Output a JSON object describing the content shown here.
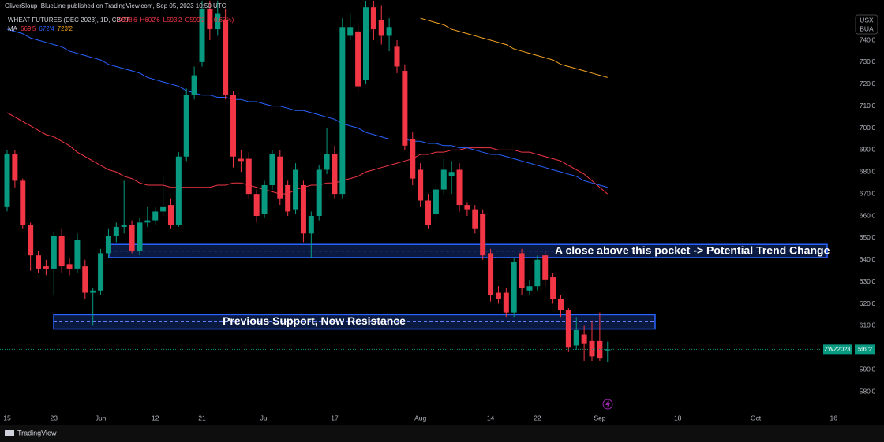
{
  "header": {
    "published": "OliverSloup_BlueLine published on TradingView.com, Sep 05, 2023 10:50 UTC",
    "brand": "TradingView"
  },
  "chart_data": {
    "type": "candlestick",
    "title": "WHEAT FUTURES (DEC 2023), 1D, CBOT",
    "ohlc_text": [
      "O598'6",
      "H602'6",
      "L593'2",
      "C599'2",
      "(+0.63%)"
    ],
    "currency": [
      "USX",
      "BUA"
    ],
    "up_color": "#089981",
    "down_color": "#f23645",
    "categories": [
      "15",
      null,
      null,
      null,
      null,
      null,
      "23",
      null,
      null,
      null,
      null,
      null,
      "Jun",
      null,
      null,
      null,
      null,
      null,
      null,
      "12",
      null,
      null,
      null,
      null,
      null,
      "21",
      null,
      null,
      null,
      null,
      null,
      null,
      null,
      "Jul",
      null,
      null,
      null,
      null,
      null,
      null,
      null,
      null,
      "17",
      null,
      null,
      null,
      null,
      null,
      null,
      null,
      null,
      null,
      null,
      "Aug",
      null,
      null,
      null,
      null,
      null,
      null,
      null,
      null,
      "14",
      null,
      null,
      null,
      null,
      null,
      "22",
      null,
      null,
      null,
      null,
      null,
      null,
      null,
      "Sep",
      null,
      null,
      null,
      null,
      null,
      null,
      null,
      null,
      null,
      "18",
      null,
      null,
      null,
      null,
      null,
      null,
      null,
      null,
      null,
      "Oct",
      null,
      null,
      null,
      null,
      null,
      null,
      null,
      null,
      null,
      "16"
    ],
    "open": [
      664,
      688,
      676,
      656,
      642,
      637,
      636,
      651,
      638,
      636,
      637,
      625,
      626,
      643,
      651,
      655,
      656,
      644,
      657,
      658,
      662,
      665,
      656,
      687,
      715,
      730,
      754,
      745,
      749,
      715,
      686,
      686,
      670,
      661,
      674,
      687,
      674,
      663,
      674,
      652,
      660,
      681,
      688,
      670,
      742,
      744,
      722,
      755,
      749,
      742,
      737,
      726,
      695,
      681,
      667,
      661,
      672,
      678,
      681,
      665,
      663,
      661,
      643,
      625,
      625,
      616,
      643,
      626,
      628,
      642,
      632,
      622,
      617,
      601,
      606,
      603,
      603,
      598.75,
      null,
      null,
      null,
      null,
      null,
      null,
      null,
      null,
      null,
      null,
      null,
      null,
      null,
      null,
      null,
      null,
      null,
      null,
      null,
      null,
      null,
      null,
      null,
      null,
      null,
      null,
      null,
      null,
      null
    ],
    "high": [
      690,
      690,
      677,
      657,
      644,
      640,
      653,
      654,
      641,
      652,
      640,
      627,
      645,
      654,
      657,
      676,
      658,
      659,
      664,
      664,
      678,
      668,
      689,
      718,
      728,
      758,
      758,
      758,
      754,
      717,
      690,
      689,
      672,
      676,
      690,
      690,
      676,
      684,
      676,
      662,
      683,
      700,
      692,
      750,
      752,
      748,
      758,
      758,
      756,
      750,
      740,
      729,
      698,
      684,
      670,
      675,
      686,
      685,
      684,
      666,
      665,
      663,
      645,
      628,
      627,
      641,
      645,
      631,
      642,
      644,
      634,
      624,
      618,
      614,
      610,
      612,
      616,
      602.75,
      null,
      null,
      null,
      null,
      null,
      null,
      null,
      null,
      null,
      null,
      null,
      null,
      null,
      null,
      null,
      null,
      null,
      null,
      null,
      null,
      null,
      null,
      null,
      null,
      null,
      null,
      null,
      null,
      null
    ],
    "low": [
      662,
      673,
      654,
      635,
      634,
      633,
      624,
      634,
      633,
      634,
      622,
      610,
      624,
      641,
      648,
      652,
      643,
      642,
      655,
      656,
      660,
      654,
      655,
      685,
      713,
      728,
      740,
      742,
      713,
      682,
      680,
      668,
      657,
      659,
      672,
      665,
      660,
      661,
      648,
      641,
      658,
      679,
      668,
      668,
      740,
      716,
      720,
      740,
      738,
      735,
      725,
      690,
      674,
      664,
      654,
      658,
      670,
      670,
      662,
      660,
      652,
      640,
      621,
      620,
      614,
      614,
      624,
      624,
      626,
      628,
      620,
      614,
      598,
      599,
      594,
      594,
      594,
      593.25,
      null,
      null,
      null,
      null,
      null,
      null,
      null,
      null,
      null,
      null,
      null,
      null,
      null,
      null,
      null,
      null,
      null,
      null,
      null,
      null,
      null,
      null,
      null,
      null,
      null,
      null,
      null,
      null,
      null
    ],
    "close": [
      688,
      676,
      656,
      642,
      636,
      636,
      651,
      637,
      636,
      649,
      625,
      626,
      643,
      651,
      655,
      656,
      644,
      657,
      658,
      662,
      664,
      656,
      687,
      715,
      724,
      754,
      745,
      752,
      715,
      687,
      685,
      670,
      660,
      674,
      688,
      668,
      662,
      681,
      652,
      660,
      681,
      688,
      670,
      746,
      746,
      719,
      755,
      745,
      742,
      746,
      728,
      692,
      677,
      667,
      656,
      672,
      681,
      680,
      665,
      663,
      654,
      642,
      624,
      622,
      616,
      639,
      627,
      628,
      640,
      631,
      622,
      617,
      600,
      608,
      602,
      596,
      595,
      599.25,
      null,
      null,
      null,
      null,
      null,
      null,
      null,
      null,
      null,
      null,
      null,
      null,
      null,
      null,
      null,
      null,
      null,
      null,
      null,
      null,
      null,
      null,
      null,
      null,
      null,
      null,
      null,
      null,
      null
    ],
    "ma_label": "MA",
    "ma_values": [
      {
        "value": 669.625,
        "label": "669'5"
      },
      {
        "value": 672.5,
        "label": "672'4"
      },
      {
        "value": 723.25,
        "label": "723'2"
      }
    ],
    "series": [
      {
        "color": "#f23645",
        "values": [
          707,
          705,
          703,
          701,
          699,
          697,
          696,
          694,
          692,
          689,
          687,
          685,
          683,
          681,
          680,
          678,
          677,
          675,
          674,
          674,
          674,
          673,
          673,
          673,
          673,
          673,
          673,
          674,
          674,
          675,
          675,
          674,
          673,
          672,
          671,
          670,
          670,
          672,
          673,
          674,
          674,
          675,
          675,
          676,
          677,
          678,
          680,
          681,
          682,
          683,
          684,
          685,
          686,
          688,
          688,
          689,
          689,
          690,
          690,
          691,
          691,
          691,
          691,
          690,
          690,
          690,
          689,
          689,
          688,
          687,
          686,
          685,
          683,
          681,
          679,
          676,
          673,
          670,
          null,
          null,
          null,
          null,
          null,
          null,
          null,
          null,
          null,
          null,
          null,
          null,
          null,
          null,
          null,
          null,
          null,
          null,
          null,
          null,
          null,
          null,
          null,
          null,
          null,
          null,
          null,
          null,
          null
        ]
      },
      {
        "color": "#2962ff",
        "values": [
          745,
          744,
          743,
          741,
          740,
          739,
          738,
          737,
          735,
          734,
          733,
          732,
          731,
          729,
          728,
          727,
          726,
          725,
          723,
          722,
          721,
          720,
          719,
          717,
          716,
          715,
          715,
          714,
          714,
          713,
          713,
          712,
          712,
          711,
          710,
          710,
          709,
          708,
          708,
          707,
          706,
          705,
          704,
          702,
          701,
          700,
          698,
          697,
          696,
          695,
          695,
          695,
          694,
          694,
          693,
          693,
          692,
          692,
          691,
          691,
          690,
          689,
          688,
          688,
          687,
          686,
          685,
          684,
          683,
          682,
          681,
          680,
          679,
          678,
          676,
          675,
          674,
          673,
          null,
          null,
          null,
          null,
          null,
          null,
          null,
          null,
          null,
          null,
          null,
          null,
          null,
          null,
          null,
          null,
          null,
          null,
          null,
          null,
          null,
          null,
          null,
          null,
          null,
          null,
          null,
          null,
          null
        ]
      },
      {
        "color": "#f5a623",
        "values": [
          null,
          null,
          null,
          null,
          null,
          null,
          null,
          null,
          null,
          null,
          null,
          null,
          null,
          null,
          null,
          null,
          null,
          null,
          null,
          null,
          null,
          null,
          null,
          null,
          null,
          null,
          null,
          null,
          null,
          null,
          null,
          null,
          null,
          null,
          null,
          null,
          null,
          null,
          null,
          null,
          null,
          null,
          null,
          null,
          null,
          null,
          null,
          null,
          null,
          null,
          null,
          null,
          null,
          750,
          749,
          748,
          747,
          745,
          744,
          743,
          742,
          741,
          740,
          739,
          738,
          736,
          735,
          734,
          733,
          732,
          731,
          729,
          728,
          727,
          726,
          725,
          724,
          723,
          null,
          null,
          null,
          null,
          null,
          null,
          null,
          null,
          null,
          null,
          null,
          null,
          null,
          null,
          null,
          null,
          null,
          null,
          null,
          null,
          null,
          null,
          null,
          null,
          null,
          null,
          null,
          null,
          null
        ]
      }
    ],
    "zones": [
      {
        "top": 647,
        "bottom": 641,
        "color": "#2962ff",
        "label": "A close above this pocket -> Potential Trend Change"
      },
      {
        "top": 615,
        "bottom": 608.5,
        "color": "#2962ff",
        "label": "Previous Support, Now Resistance"
      }
    ],
    "last_price": {
      "value": 599.25,
      "label": "599'2",
      "symbol": "ZWZ2023"
    },
    "ylim": [
      571.75,
      758.3
    ],
    "yticks": [
      {
        "value": 580,
        "label": "580'0"
      },
      {
        "value": 590,
        "label": "590'0"
      },
      {
        "value": 600,
        "label": "600'0"
      },
      {
        "value": 610,
        "label": "610'0"
      },
      {
        "value": 620,
        "label": "620'0"
      },
      {
        "value": 630,
        "label": "630'0"
      },
      {
        "value": 640,
        "label": "640'0"
      },
      {
        "value": 650,
        "label": "650'0"
      },
      {
        "value": 660,
        "label": "660'0"
      },
      {
        "value": 670,
        "label": "670'0"
      },
      {
        "value": 680,
        "label": "680'0"
      },
      {
        "value": 690,
        "label": "690'0"
      },
      {
        "value": 700,
        "label": "700'0"
      },
      {
        "value": 710,
        "label": "710'0"
      },
      {
        "value": 720,
        "label": "720'0"
      },
      {
        "value": 730,
        "label": "730'0"
      },
      {
        "value": 740,
        "label": "740'0"
      }
    ],
    "grid": false
  }
}
